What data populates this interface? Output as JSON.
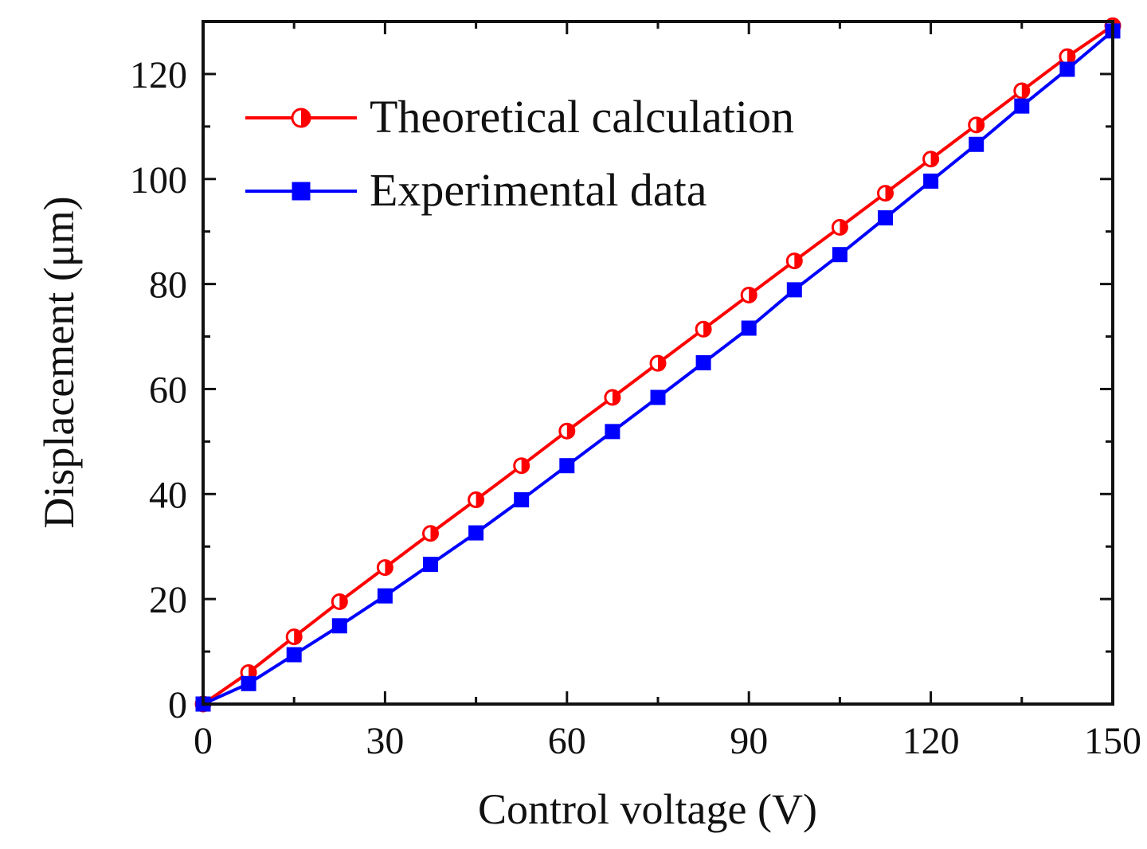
{
  "chart_data": {
    "type": "line",
    "title": "",
    "xlabel": "Control voltage (V)",
    "ylabel": "Displacement (μm)",
    "xlim": [
      0,
      150
    ],
    "ylim": [
      0,
      130
    ],
    "xticks": [
      0,
      30,
      60,
      90,
      120,
      150
    ],
    "yticks": [
      0,
      20,
      40,
      60,
      80,
      100,
      120
    ],
    "grid": false,
    "legend_position": "top-left",
    "series": [
      {
        "name": "Theoretical calculation",
        "color": "#ff0000",
        "marker": "half-filled-circle",
        "x": [
          0,
          7.5,
          15,
          22.5,
          30,
          37.5,
          45,
          52.5,
          60,
          67.5,
          75,
          82.5,
          90,
          97.5,
          105,
          112.5,
          120,
          127.5,
          135,
          142.5,
          150
        ],
        "y": [
          0,
          6.0,
          12.8,
          19.5,
          26.0,
          32.5,
          38.9,
          45.4,
          52.0,
          58.4,
          64.9,
          71.4,
          77.9,
          84.4,
          90.8,
          97.3,
          103.8,
          110.3,
          116.8,
          123.3,
          129.2
        ]
      },
      {
        "name": "Experimental data",
        "color": "#0000ff",
        "marker": "filled-square",
        "x": [
          0,
          7.5,
          15,
          22.5,
          30,
          37.5,
          45,
          52.5,
          60,
          67.5,
          75,
          82.5,
          90,
          97.5,
          105,
          112.5,
          120,
          127.5,
          135,
          142.5,
          150
        ],
        "y": [
          0,
          3.9,
          9.4,
          14.9,
          20.6,
          26.6,
          32.6,
          38.9,
          45.4,
          51.9,
          58.4,
          65.0,
          71.6,
          78.9,
          85.6,
          92.6,
          99.6,
          106.6,
          113.9,
          120.9,
          128.2
        ]
      }
    ]
  }
}
